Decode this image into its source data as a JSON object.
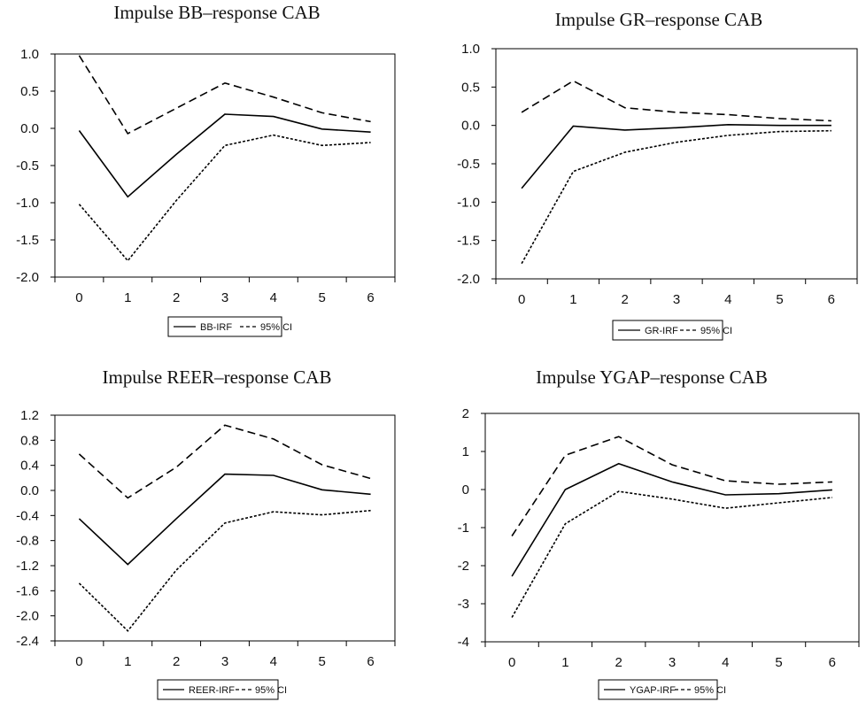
{
  "chart_data": [
    {
      "type": "line",
      "title": "Impulse BB–response CAB",
      "x": [
        0,
        1,
        2,
        3,
        4,
        5,
        6
      ],
      "ylim": [
        -2.0,
        1.0
      ],
      "yticks": [
        "1.0",
        "0.5",
        "0.0",
        "-0.5",
        "-1.0",
        "-1.5",
        "-2.0"
      ],
      "ytick_values": [
        1.0,
        0.5,
        0.0,
        -0.5,
        -1.0,
        -1.5,
        -2.0
      ],
      "xticks": [
        "0",
        "1",
        "2",
        "3",
        "4",
        "5",
        "6"
      ],
      "grid": false,
      "legend": {
        "irf_label": "BB-IRF",
        "ci_label": "95% CI",
        "placement": "bottom-center"
      },
      "series": [
        {
          "name": "BB-IRF",
          "style": "solid",
          "values": [
            -0.03,
            -0.92,
            -0.35,
            0.19,
            0.16,
            -0.01,
            -0.05
          ]
        },
        {
          "name": "95% CI",
          "style": "dashed",
          "values": [
            0.98,
            -0.07,
            0.27,
            0.61,
            0.42,
            0.21,
            0.09
          ]
        },
        {
          "name": "95% CI",
          "style": "dotted",
          "values": [
            -1.02,
            -1.78,
            -0.97,
            -0.23,
            -0.09,
            -0.23,
            -0.19
          ]
        }
      ]
    },
    {
      "type": "line",
      "title": "Impulse GR–response CAB",
      "x": [
        0,
        1,
        2,
        3,
        4,
        5,
        6
      ],
      "ylim": [
        -2.0,
        1.0
      ],
      "yticks": [
        "1.0",
        "0.5",
        "0.0",
        "-0.5",
        "-1.0",
        "-1.5",
        "-2.0"
      ],
      "ytick_values": [
        1.0,
        0.5,
        0.0,
        -0.5,
        -1.0,
        -1.5,
        -2.0
      ],
      "xticks": [
        "0",
        "1",
        "2",
        "3",
        "4",
        "5",
        "6"
      ],
      "grid": false,
      "legend": {
        "irf_label": "GR-IRF",
        "ci_label": "95% CI",
        "placement": "bottom-center"
      },
      "series": [
        {
          "name": "GR-IRF",
          "style": "solid",
          "values": [
            -0.82,
            -0.01,
            -0.06,
            -0.03,
            0.01,
            0.0,
            0.0
          ]
        },
        {
          "name": "95% CI",
          "style": "dashed",
          "values": [
            0.17,
            0.58,
            0.23,
            0.17,
            0.14,
            0.09,
            0.06
          ]
        },
        {
          "name": "95% CI",
          "style": "dotted",
          "values": [
            -1.8,
            -0.6,
            -0.35,
            -0.22,
            -0.13,
            -0.08,
            -0.07
          ]
        }
      ]
    },
    {
      "type": "line",
      "title": "Impulse REER–response CAB",
      "x": [
        0,
        1,
        2,
        3,
        4,
        5,
        6
      ],
      "ylim": [
        -2.4,
        1.2
      ],
      "yticks": [
        "1.2",
        "0.8",
        "0.4",
        "0.0",
        "-0.4",
        "-0.8",
        "-1.2",
        "-1.6",
        "-2.0",
        "-2.4"
      ],
      "ytick_values": [
        1.2,
        0.8,
        0.4,
        0.0,
        -0.4,
        -0.8,
        -1.2,
        -1.6,
        -2.0,
        -2.4
      ],
      "xticks": [
        "0",
        "1",
        "2",
        "3",
        "4",
        "5",
        "6"
      ],
      "grid": false,
      "legend": {
        "irf_label": "REER-IRF",
        "ci_label": "95% CI",
        "placement": "bottom-center"
      },
      "series": [
        {
          "name": "REER-IRF",
          "style": "solid",
          "values": [
            -0.45,
            -1.18,
            -0.45,
            0.26,
            0.24,
            0.01,
            -0.06
          ]
        },
        {
          "name": "95% CI",
          "style": "dashed",
          "values": [
            0.58,
            -0.12,
            0.37,
            1.04,
            0.82,
            0.41,
            0.19
          ]
        },
        {
          "name": "95% CI",
          "style": "dotted",
          "values": [
            -1.48,
            -2.24,
            -1.27,
            -0.52,
            -0.34,
            -0.39,
            -0.32
          ]
        }
      ]
    },
    {
      "type": "line",
      "title": "Impulse YGAP–response CAB",
      "x": [
        0,
        1,
        2,
        3,
        4,
        5,
        6
      ],
      "ylim": [
        -4,
        2
      ],
      "yticks": [
        "2",
        "1",
        "0",
        "-1",
        "-2",
        "-3",
        "-4"
      ],
      "ytick_values": [
        2,
        1,
        0,
        -1,
        -2,
        -3,
        -4
      ],
      "xticks": [
        "0",
        "1",
        "2",
        "3",
        "4",
        "5",
        "6"
      ],
      "grid": false,
      "legend": {
        "irf_label": "YGAP-IRF",
        "ci_label": "95% CI",
        "placement": "bottom-center"
      },
      "series": [
        {
          "name": "YGAP-IRF",
          "style": "solid",
          "values": [
            -2.28,
            0.0,
            0.68,
            0.2,
            -0.14,
            -0.11,
            -0.01
          ]
        },
        {
          "name": "95% CI",
          "style": "dashed",
          "values": [
            -1.22,
            0.9,
            1.39,
            0.65,
            0.23,
            0.14,
            0.2
          ]
        },
        {
          "name": "95% CI",
          "style": "dotted",
          "values": [
            -3.36,
            -0.9,
            -0.05,
            -0.25,
            -0.49,
            -0.35,
            -0.21
          ]
        }
      ]
    }
  ]
}
